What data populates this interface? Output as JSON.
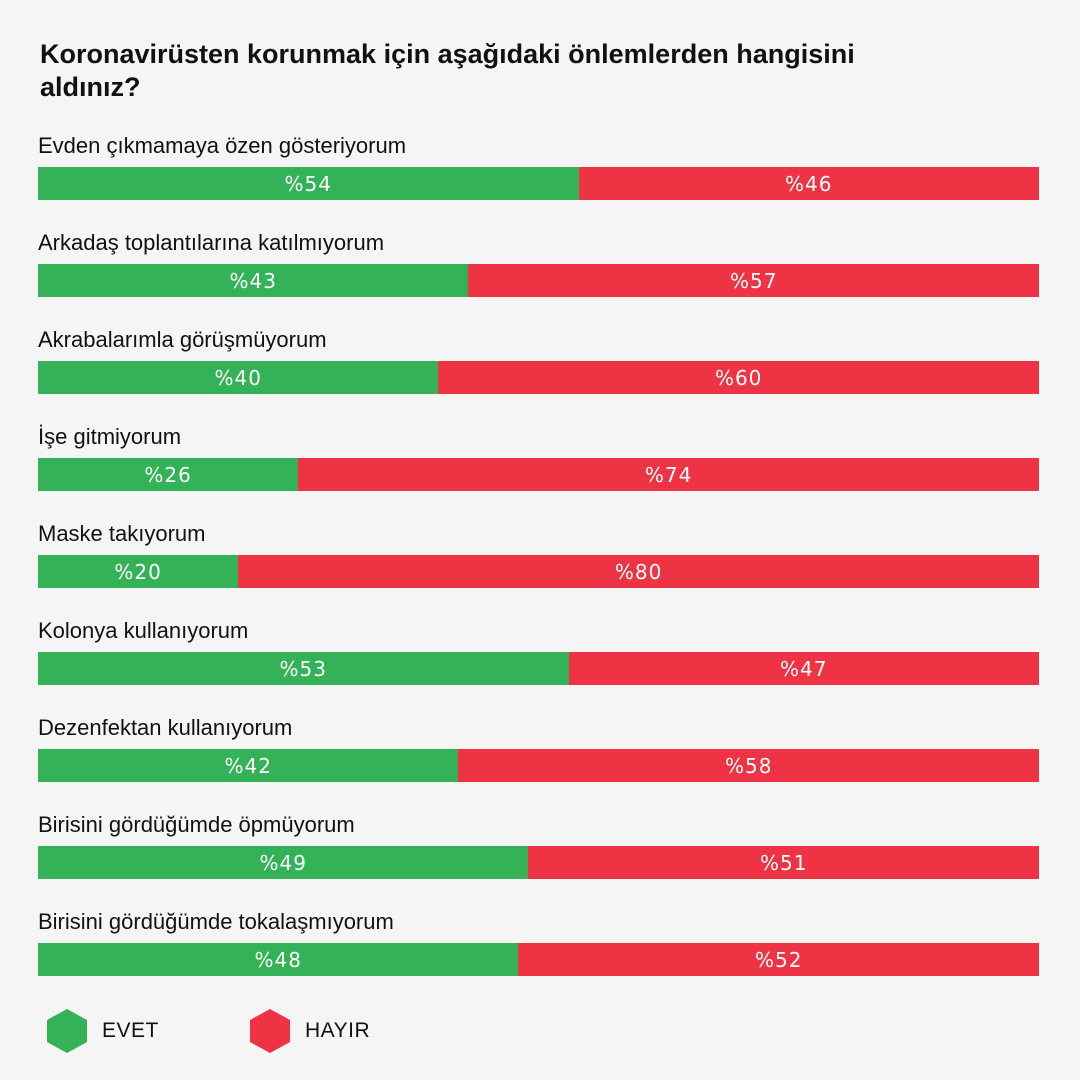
{
  "chart_data": {
    "type": "bar",
    "title": "Koronavirüsten korunmak için aşağıdaki önlemlerden hangisini aldınız?",
    "value_prefix": "%",
    "categories": [
      "Evden çıkmamaya özen gösteriyorum",
      "Arkadaş toplantılarına katılmıyorum",
      "Akrabalarımla görüşmüyorum",
      "İşe gitmiyorum",
      "Maske takıyorum",
      "Kolonya kullanıyorum",
      "Dezenfektan kullanıyorum",
      "Birisini gördüğümde öpmüyorum",
      "Birisini gördüğümde tokalaşmıyorum"
    ],
    "series": [
      {
        "name": "EVET",
        "color": "#33b257",
        "values": [
          54,
          43,
          40,
          26,
          20,
          53,
          42,
          49,
          48
        ]
      },
      {
        "name": "HAYIR",
        "color": "#ee3344",
        "values": [
          46,
          57,
          60,
          74,
          80,
          47,
          58,
          51,
          52
        ]
      }
    ],
    "stacked": true,
    "orientation": "horizontal",
    "xlim": [
      0,
      100
    ],
    "grid": false,
    "legend_position": "bottom-left"
  }
}
